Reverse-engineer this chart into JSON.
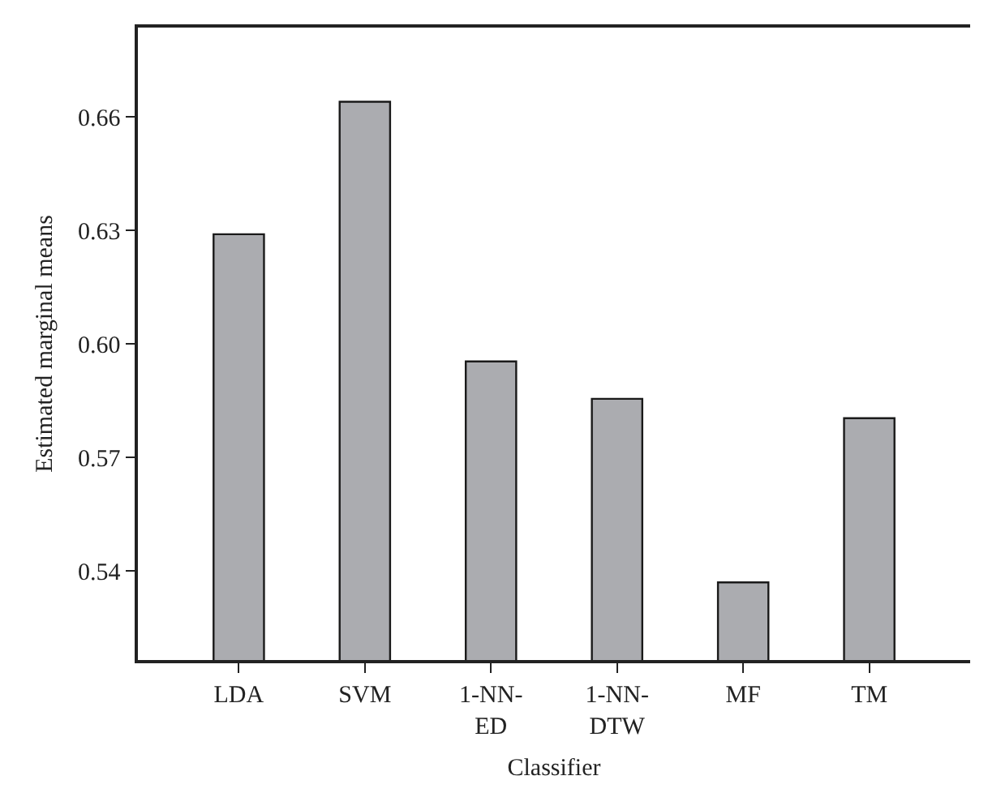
{
  "chart_data": {
    "type": "bar",
    "xlabel": "Classifier",
    "ylabel": "Estimated marginal means",
    "categories": [
      "LDA",
      "SVM",
      "1-NN-\nED",
      "1-NN-\nDTW",
      "MF",
      "TM"
    ],
    "values": [
      0.629,
      0.664,
      0.5954,
      0.5855,
      0.537,
      0.5804
    ],
    "color": "#abacb0",
    "ylim": [
      0.5165,
      0.6836
    ],
    "yticks": [
      0.54,
      0.57,
      {
        "value": 0.6,
        "label": "0.60"
      },
      0.63,
      0.66
    ],
    "grid": false
  }
}
